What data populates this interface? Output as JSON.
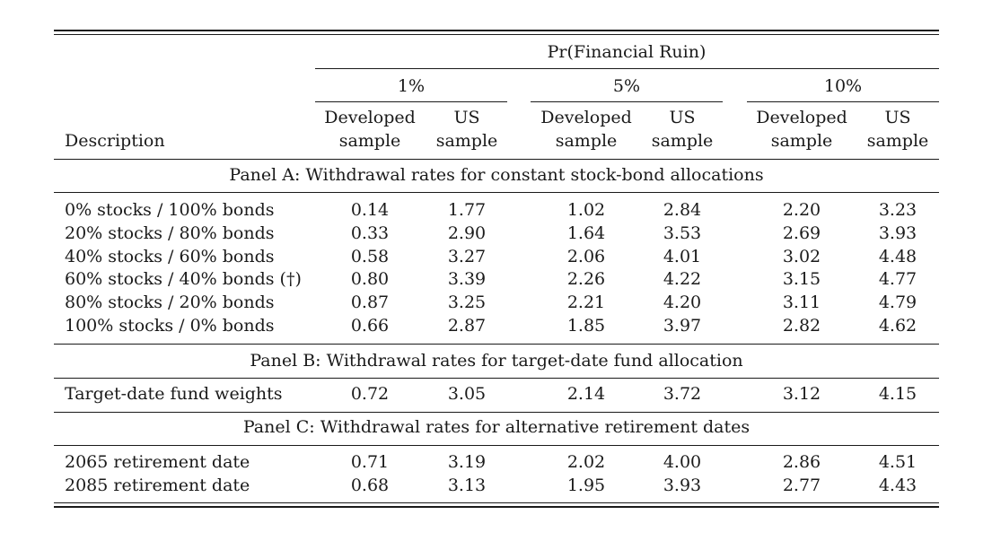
{
  "header": {
    "group_title": "Pr(Financial Ruin)",
    "levels": [
      "1%",
      "5%",
      "10%"
    ],
    "sub_top": [
      "Developed",
      "US",
      "Developed",
      "US",
      "Developed",
      "US"
    ],
    "sub_bottom": [
      "sample",
      "sample",
      "sample",
      "sample",
      "sample",
      "sample"
    ],
    "description_label": "Description"
  },
  "panels": [
    {
      "title": "Panel A: Withdrawal rates for constant stock-bond allocations",
      "rows": [
        {
          "label": "0% stocks / 100% bonds",
          "values": [
            "0.14",
            "1.77",
            "1.02",
            "2.84",
            "2.20",
            "3.23"
          ]
        },
        {
          "label": "20% stocks / 80% bonds",
          "values": [
            "0.33",
            "2.90",
            "1.64",
            "3.53",
            "2.69",
            "3.93"
          ]
        },
        {
          "label": "40% stocks / 60% bonds",
          "values": [
            "0.58",
            "3.27",
            "2.06",
            "4.01",
            "3.02",
            "4.48"
          ]
        },
        {
          "label": "60% stocks / 40% bonds (†)",
          "values": [
            "0.80",
            "3.39",
            "2.26",
            "4.22",
            "3.15",
            "4.77"
          ]
        },
        {
          "label": "80% stocks / 20% bonds",
          "values": [
            "0.87",
            "3.25",
            "2.21",
            "4.20",
            "3.11",
            "4.79"
          ]
        },
        {
          "label": "100% stocks / 0% bonds",
          "values": [
            "0.66",
            "2.87",
            "1.85",
            "3.97",
            "2.82",
            "4.62"
          ]
        }
      ]
    },
    {
      "title": "Panel B: Withdrawal rates for target-date fund allocation",
      "rows": [
        {
          "label": "Target-date fund weights",
          "values": [
            "0.72",
            "3.05",
            "2.14",
            "3.72",
            "3.12",
            "4.15"
          ]
        }
      ]
    },
    {
      "title": "Panel C: Withdrawal rates for alternative retirement dates",
      "rows": [
        {
          "label": "2065 retirement date",
          "values": [
            "0.71",
            "3.19",
            "2.02",
            "4.00",
            "2.86",
            "4.51"
          ]
        },
        {
          "label": "2085 retirement date",
          "values": [
            "0.68",
            "3.13",
            "1.95",
            "3.93",
            "2.77",
            "4.43"
          ]
        }
      ]
    }
  ]
}
